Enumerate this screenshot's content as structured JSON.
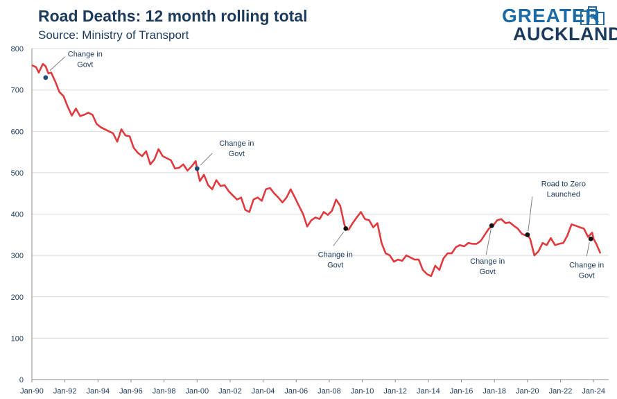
{
  "header": {
    "title": "Road Deaths: 12 month rolling total",
    "subtitle": "Source: Ministry of Transport"
  },
  "logo": {
    "line1": "GREATER",
    "line2": "AUCKLAND"
  },
  "colors": {
    "line": "#e0393e",
    "text": "#1b3a5c",
    "marker_black": "#111111",
    "marker_blue": "#1b4f7a"
  },
  "chart_data": {
    "type": "line",
    "title": "Road Deaths: 12 month rolling total",
    "subtitle": "Source: Ministry of Transport",
    "xlabel": "",
    "ylabel": "",
    "ylim": [
      0,
      800
    ],
    "xlim": [
      "1990-01",
      "2024-12"
    ],
    "grid": "horizontal",
    "legend": "none",
    "y_ticks": [
      "0",
      "100",
      "200",
      "300",
      "400",
      "500",
      "600",
      "700",
      "800"
    ],
    "x_ticks": [
      "Jan-90",
      "Jan-92",
      "Jan-94",
      "Jan-96",
      "Jan-98",
      "Jan-00",
      "Jan-02",
      "Jan-04",
      "Jan-06",
      "Jan-08",
      "Jan-10",
      "Jan-12",
      "Jan-14",
      "Jan-16",
      "Jan-18",
      "Jan-20",
      "Jan-22",
      "Jan-24"
    ],
    "series": [
      {
        "points": [
          [
            "1990-01",
            760
          ],
          [
            "1990-04",
            755
          ],
          [
            "1990-06",
            742
          ],
          [
            "1990-09",
            763
          ],
          [
            "1990-11",
            757
          ],
          [
            "1991-01",
            740
          ],
          [
            "1991-03",
            742
          ],
          [
            "1991-06",
            720
          ],
          [
            "1991-09",
            695
          ],
          [
            "1991-12",
            685
          ],
          [
            "1992-03",
            660
          ],
          [
            "1992-06",
            638
          ],
          [
            "1992-09",
            655
          ],
          [
            "1992-12",
            637
          ],
          [
            "1993-03",
            640
          ],
          [
            "1993-06",
            645
          ],
          [
            "1993-09",
            640
          ],
          [
            "1993-12",
            618
          ],
          [
            "1994-03",
            610
          ],
          [
            "1994-06",
            605
          ],
          [
            "1994-09",
            600
          ],
          [
            "1994-12",
            595
          ],
          [
            "1995-03",
            575
          ],
          [
            "1995-06",
            605
          ],
          [
            "1995-09",
            590
          ],
          [
            "1995-12",
            588
          ],
          [
            "1996-03",
            560
          ],
          [
            "1996-06",
            548
          ],
          [
            "1996-09",
            540
          ],
          [
            "1996-12",
            552
          ],
          [
            "1997-03",
            520
          ],
          [
            "1997-06",
            532
          ],
          [
            "1997-09",
            557
          ],
          [
            "1997-12",
            540
          ],
          [
            "1998-03",
            535
          ],
          [
            "1998-06",
            530
          ],
          [
            "1998-09",
            510
          ],
          [
            "1998-12",
            512
          ],
          [
            "1999-03",
            520
          ],
          [
            "1999-06",
            505
          ],
          [
            "1999-09",
            515
          ],
          [
            "1999-12",
            528
          ],
          [
            "2000-01",
            508
          ],
          [
            "2000-03",
            480
          ],
          [
            "2000-06",
            495
          ],
          [
            "2000-09",
            470
          ],
          [
            "2000-12",
            460
          ],
          [
            "2001-03",
            482
          ],
          [
            "2001-06",
            468
          ],
          [
            "2001-09",
            470
          ],
          [
            "2001-12",
            455
          ],
          [
            "2002-03",
            445
          ],
          [
            "2002-06",
            435
          ],
          [
            "2002-09",
            440
          ],
          [
            "2002-12",
            410
          ],
          [
            "2003-03",
            405
          ],
          [
            "2003-06",
            435
          ],
          [
            "2003-09",
            440
          ],
          [
            "2003-12",
            432
          ],
          [
            "2004-03",
            460
          ],
          [
            "2004-06",
            463
          ],
          [
            "2004-09",
            450
          ],
          [
            "2004-12",
            440
          ],
          [
            "2005-03",
            428
          ],
          [
            "2005-06",
            440
          ],
          [
            "2005-09",
            460
          ],
          [
            "2005-12",
            440
          ],
          [
            "2006-03",
            420
          ],
          [
            "2006-06",
            400
          ],
          [
            "2006-09",
            370
          ],
          [
            "2006-12",
            385
          ],
          [
            "2007-03",
            392
          ],
          [
            "2007-06",
            388
          ],
          [
            "2007-09",
            405
          ],
          [
            "2007-12",
            398
          ],
          [
            "2008-03",
            408
          ],
          [
            "2008-06",
            435
          ],
          [
            "2008-09",
            420
          ],
          [
            "2008-12",
            375
          ],
          [
            "2009-01",
            365
          ],
          [
            "2009-03",
            362
          ],
          [
            "2009-06",
            378
          ],
          [
            "2009-09",
            392
          ],
          [
            "2009-12",
            405
          ],
          [
            "2010-03",
            388
          ],
          [
            "2010-06",
            385
          ],
          [
            "2010-09",
            368
          ],
          [
            "2010-12",
            378
          ],
          [
            "2011-03",
            330
          ],
          [
            "2011-06",
            305
          ],
          [
            "2011-09",
            300
          ],
          [
            "2011-12",
            285
          ],
          [
            "2012-03",
            290
          ],
          [
            "2012-06",
            287
          ],
          [
            "2012-09",
            300
          ],
          [
            "2012-12",
            295
          ],
          [
            "2013-03",
            290
          ],
          [
            "2013-06",
            290
          ],
          [
            "2013-09",
            265
          ],
          [
            "2013-12",
            255
          ],
          [
            "2014-03",
            250
          ],
          [
            "2014-06",
            275
          ],
          [
            "2014-09",
            265
          ],
          [
            "2014-12",
            293
          ],
          [
            "2015-03",
            305
          ],
          [
            "2015-06",
            305
          ],
          [
            "2015-09",
            320
          ],
          [
            "2015-12",
            325
          ],
          [
            "2016-03",
            322
          ],
          [
            "2016-06",
            330
          ],
          [
            "2016-09",
            328
          ],
          [
            "2016-12",
            328
          ],
          [
            "2017-03",
            335
          ],
          [
            "2017-06",
            350
          ],
          [
            "2017-09",
            365
          ],
          [
            "2017-12",
            372
          ],
          [
            "2018-03",
            385
          ],
          [
            "2018-06",
            388
          ],
          [
            "2018-09",
            378
          ],
          [
            "2018-12",
            380
          ],
          [
            "2019-03",
            372
          ],
          [
            "2019-06",
            365
          ],
          [
            "2019-09",
            352
          ],
          [
            "2019-12",
            348
          ],
          [
            "2020-01",
            350
          ],
          [
            "2020-03",
            340
          ],
          [
            "2020-06",
            300
          ],
          [
            "2020-09",
            310
          ],
          [
            "2020-12",
            330
          ],
          [
            "2021-03",
            325
          ],
          [
            "2021-06",
            342
          ],
          [
            "2021-09",
            325
          ],
          [
            "2021-12",
            328
          ],
          [
            "2022-03",
            330
          ],
          [
            "2022-06",
            348
          ],
          [
            "2022-09",
            375
          ],
          [
            "2022-12",
            372
          ],
          [
            "2023-03",
            368
          ],
          [
            "2023-06",
            365
          ],
          [
            "2023-09",
            345
          ],
          [
            "2023-12",
            355
          ],
          [
            "2024-01",
            340
          ],
          [
            "2024-03",
            328
          ],
          [
            "2024-06",
            305
          ]
        ]
      }
    ],
    "annotations": [
      {
        "label_lines": [
          "Change in",
          "Govt"
        ],
        "x": "1990-11",
        "y": 730,
        "marker": "blue"
      },
      {
        "label_lines": [
          "Change in",
          "Govt"
        ],
        "x": "2000-01",
        "y": 510,
        "marker": "blue"
      },
      {
        "label_lines": [
          "Change in",
          "Govt"
        ],
        "x": "2009-01",
        "y": 365,
        "marker": "black"
      },
      {
        "label_lines": [
          "Change in",
          "Govt"
        ],
        "x": "2017-11",
        "y": 372,
        "marker": "black"
      },
      {
        "label_lines": [
          "Road to Zero",
          "Launched"
        ],
        "x": "2020-01",
        "y": 350,
        "marker": "black"
      },
      {
        "label_lines": [
          "Change in",
          "Govt"
        ],
        "x": "2023-11",
        "y": 340,
        "marker": "black"
      }
    ]
  }
}
